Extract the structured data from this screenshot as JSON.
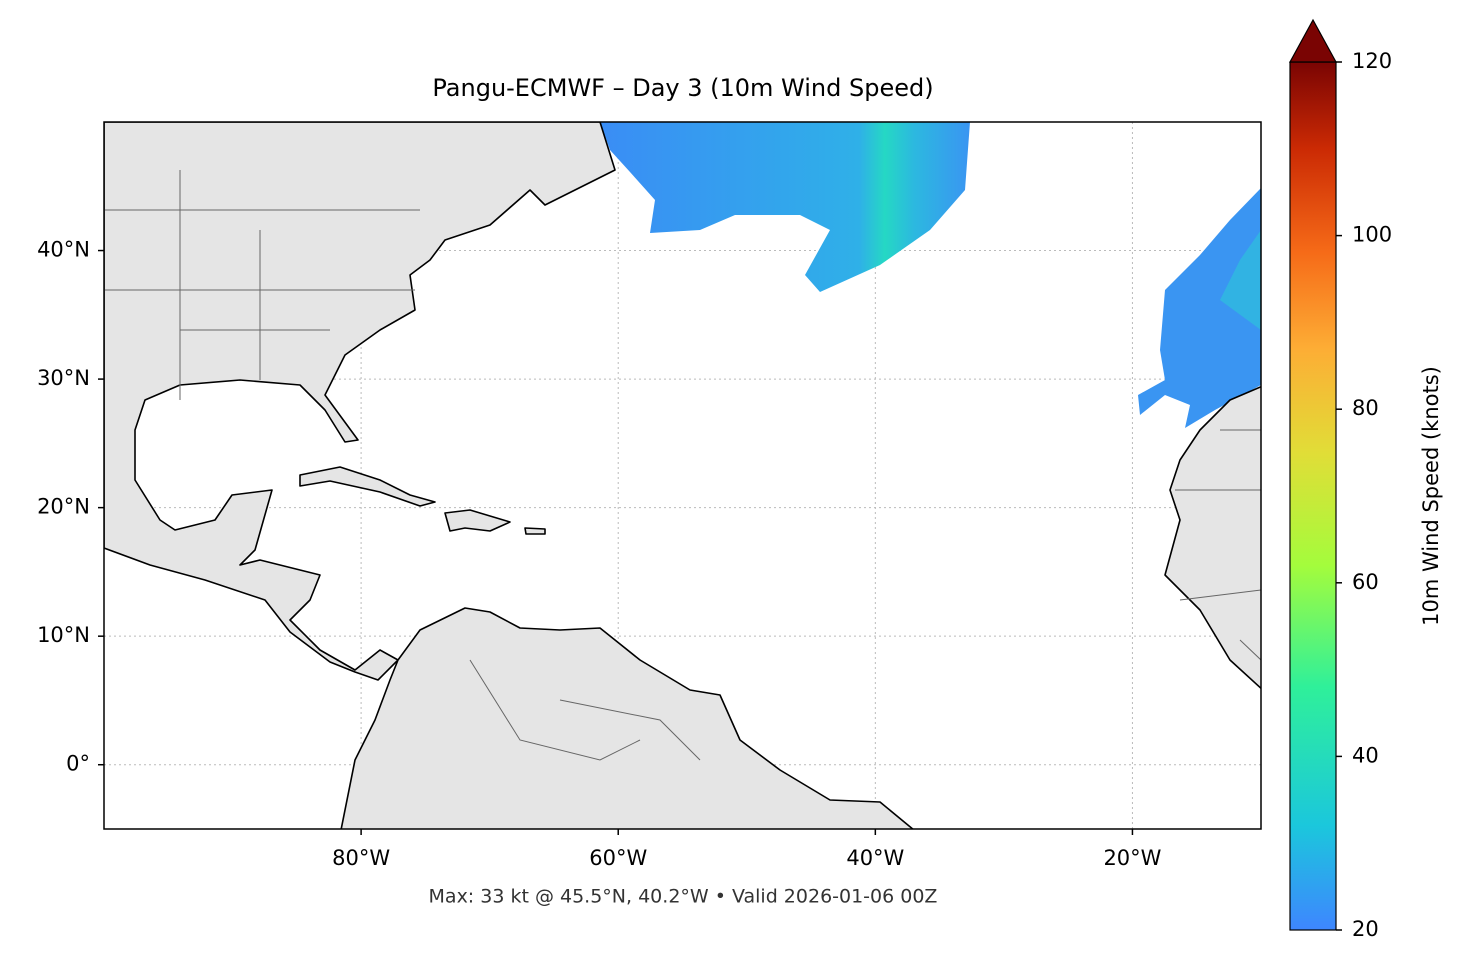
{
  "title": "Pangu-ECMWF – Day 3 (10m Wind Speed)",
  "map": {
    "xlim": [
      -100,
      -10
    ],
    "ylim": [
      -5,
      50
    ],
    "xticks": [
      {
        "value": -80,
        "label": "80°W"
      },
      {
        "value": -60,
        "label": "60°W"
      },
      {
        "value": -40,
        "label": "40°W"
      },
      {
        "value": -20,
        "label": "20°W"
      }
    ],
    "yticks": [
      {
        "value": 0,
        "label": "0°"
      },
      {
        "value": 10,
        "label": "10°N"
      },
      {
        "value": 20,
        "label": "20°N"
      },
      {
        "value": 30,
        "label": "30°N"
      },
      {
        "value": 40,
        "label": "40°N"
      }
    ],
    "grid": true
  },
  "colorbar": {
    "label": "10m Wind Speed (knots)",
    "lim": [
      20,
      120
    ],
    "ticks": [
      20,
      40,
      60,
      80,
      100,
      120
    ]
  },
  "footer": "Max: 33 kt @ 45.5°N, 40.2°W • Valid 2026-01-06 00Z"
}
